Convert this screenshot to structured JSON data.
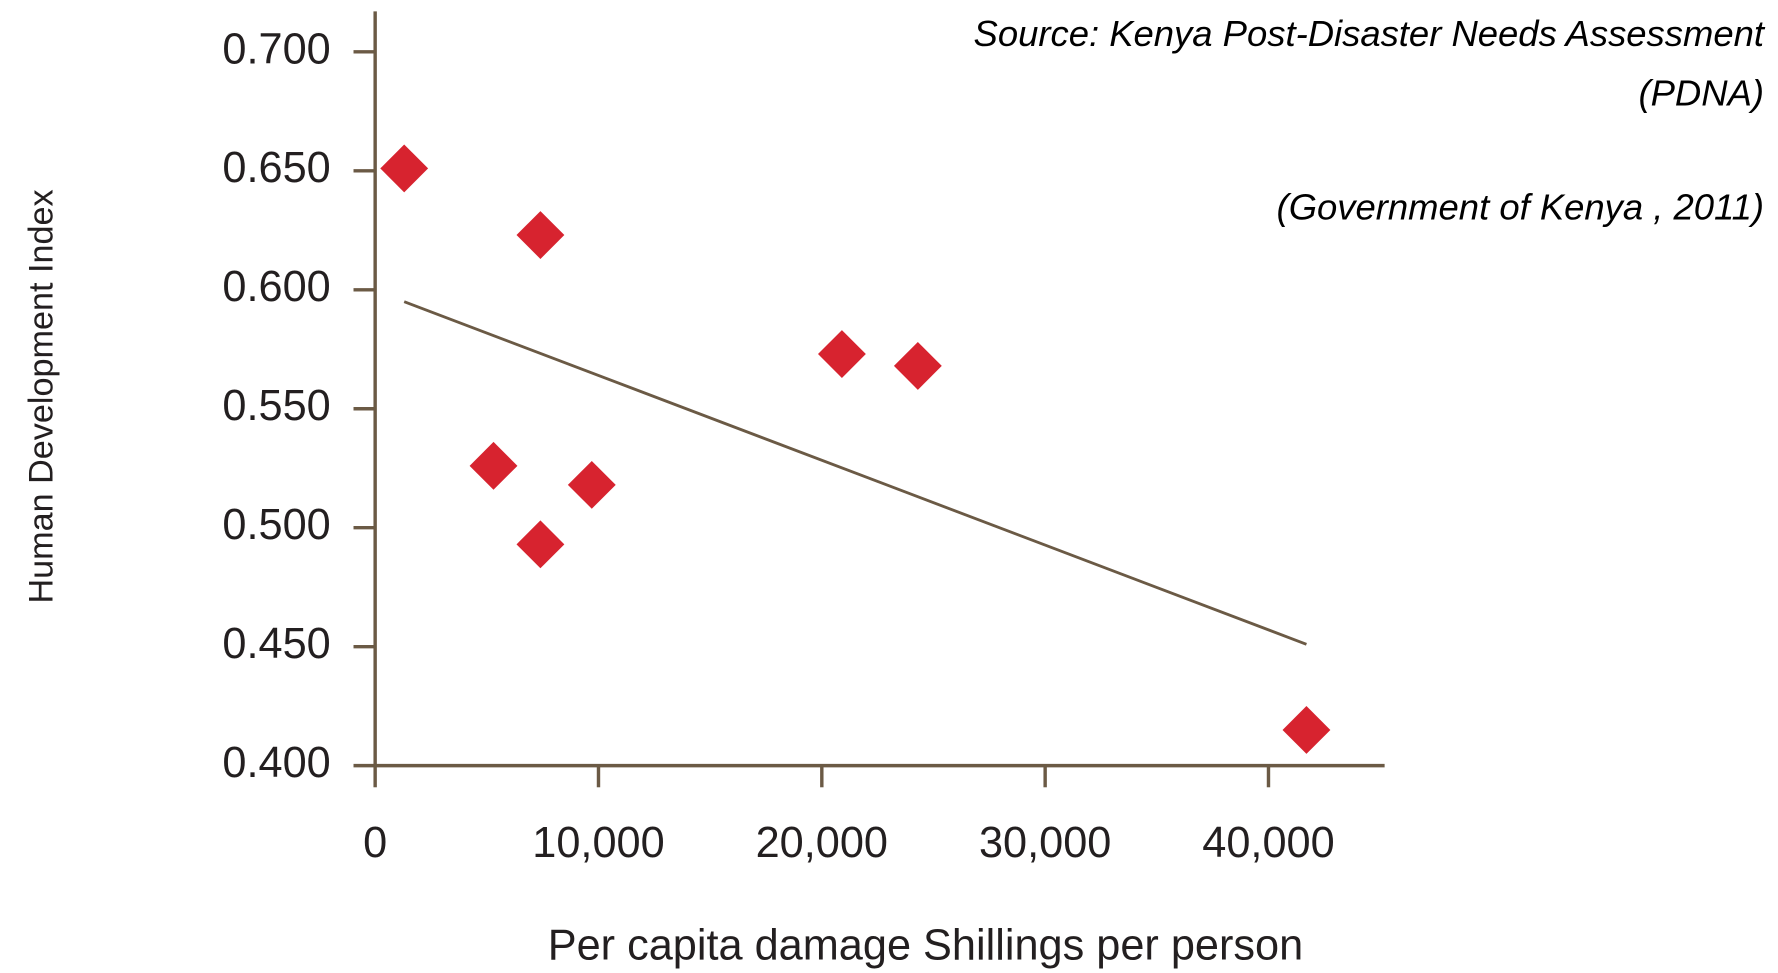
{
  "chart_data": {
    "type": "scatter",
    "xlabel": "Per capita damage Shillings per person",
    "ylabel": "Human Development Index",
    "annotations": [
      "Source: Kenya Post-Disaster Needs Assessment",
      "(PDNA)",
      "(Government of Kenya , 2011)"
    ],
    "x": [
      1300,
      7400,
      20900,
      24300,
      5300,
      9700,
      7400,
      41700
    ],
    "values": [
      0.651,
      0.623,
      0.573,
      0.568,
      0.526,
      0.518,
      0.493,
      0.415
    ],
    "color": "#d7232f",
    "trendline": {
      "x": [
        1300,
        41700
      ],
      "values": [
        0.595,
        0.451
      ],
      "color": "#6b5a45"
    },
    "xlim": [
      0,
      45200
    ],
    "ylim": [
      0.4,
      0.717
    ],
    "xticks": [
      0,
      {
        "value": 10000,
        "label": "10,000"
      },
      {
        "value": 20000,
        "label": "20,000"
      },
      {
        "value": 30000,
        "label": "30,000"
      },
      {
        "value": 40000,
        "label": "40,000"
      }
    ],
    "yticks": [
      {
        "value": 0.4,
        "label": "0.400"
      },
      {
        "value": 0.45,
        "label": "0.450"
      },
      {
        "value": 0.5,
        "label": "0.500"
      },
      {
        "value": 0.55,
        "label": "0.550"
      },
      {
        "value": 0.6,
        "label": "0.600"
      },
      {
        "value": 0.65,
        "label": "0.650"
      },
      {
        "value": 0.7,
        "label": "0.700"
      }
    ]
  }
}
